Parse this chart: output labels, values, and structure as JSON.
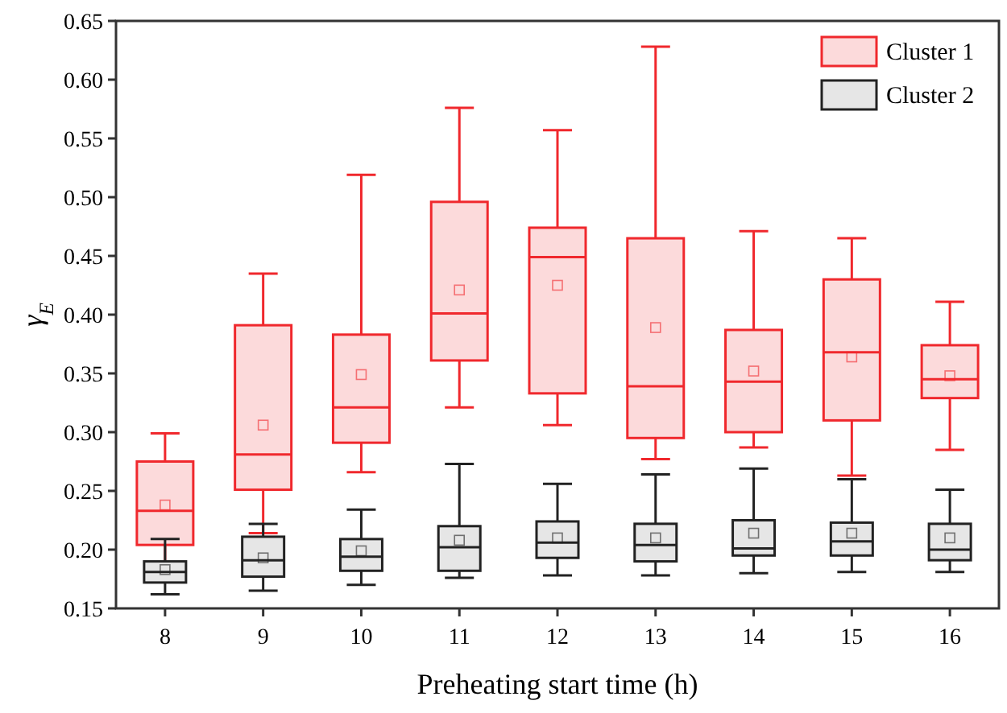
{
  "chart_data": {
    "type": "box",
    "xlabel": "Preheating start time (h)",
    "ylabel": "γ$_{E}$",
    "categories": [
      "8",
      "9",
      "10",
      "11",
      "12",
      "13",
      "14",
      "15",
      "16"
    ],
    "ylim": [
      0.15,
      0.65
    ],
    "yticks": [
      0.15,
      {
        "value": 0.2,
        "label": "0.20"
      },
      0.25,
      {
        "value": 0.3,
        "label": "0.30"
      },
      0.35,
      {
        "value": 0.4,
        "label": "0.40"
      },
      0.45,
      {
        "value": 0.5,
        "label": "0.50"
      },
      0.55,
      {
        "value": 0.6,
        "label": "0.60"
      },
      0.65
    ],
    "legend": "top right",
    "grid": false,
    "series": [
      {
        "name": "Cluster 1",
        "color": "#f0282d",
        "boxes": [
          {
            "low": 0.175,
            "q1": 0.204,
            "median": 0.233,
            "q3": 0.275,
            "high": 0.299,
            "mean": 0.238
          },
          {
            "low": 0.214,
            "q1": 0.251,
            "median": 0.281,
            "q3": 0.391,
            "high": 0.435,
            "mean": 0.306
          },
          {
            "low": 0.266,
            "q1": 0.291,
            "median": 0.321,
            "q3": 0.383,
            "high": 0.519,
            "mean": 0.349
          },
          {
            "low": 0.321,
            "q1": 0.361,
            "median": 0.401,
            "q3": 0.496,
            "high": 0.576,
            "mean": 0.421
          },
          {
            "low": 0.306,
            "q1": 0.333,
            "median": 0.449,
            "q3": 0.474,
            "high": 0.557,
            "mean": 0.425
          },
          {
            "low": 0.277,
            "q1": 0.295,
            "median": 0.339,
            "q3": 0.465,
            "high": 0.628,
            "mean": 0.389
          },
          {
            "low": 0.287,
            "q1": 0.3,
            "median": 0.343,
            "q3": 0.387,
            "high": 0.471,
            "mean": 0.352
          },
          {
            "low": 0.263,
            "q1": 0.31,
            "median": 0.368,
            "q3": 0.43,
            "high": 0.465,
            "mean": 0.364
          },
          {
            "low": 0.285,
            "q1": 0.329,
            "median": 0.345,
            "q3": 0.374,
            "high": 0.411,
            "mean": 0.348
          }
        ]
      },
      {
        "name": "Cluster 2",
        "color": "#222222",
        "boxes": [
          {
            "low": 0.162,
            "q1": 0.172,
            "median": 0.181,
            "q3": 0.19,
            "high": 0.209,
            "mean": 0.183
          },
          {
            "low": 0.165,
            "q1": 0.177,
            "median": 0.191,
            "q3": 0.211,
            "high": 0.222,
            "mean": 0.193
          },
          {
            "low": 0.17,
            "q1": 0.182,
            "median": 0.194,
            "q3": 0.209,
            "high": 0.234,
            "mean": 0.199
          },
          {
            "low": 0.176,
            "q1": 0.182,
            "median": 0.202,
            "q3": 0.22,
            "high": 0.273,
            "mean": 0.208
          },
          {
            "low": 0.178,
            "q1": 0.193,
            "median": 0.206,
            "q3": 0.224,
            "high": 0.256,
            "mean": 0.21
          },
          {
            "low": 0.178,
            "q1": 0.19,
            "median": 0.204,
            "q3": 0.222,
            "high": 0.264,
            "mean": 0.21
          },
          {
            "low": 0.18,
            "q1": 0.195,
            "median": 0.201,
            "q3": 0.225,
            "high": 0.269,
            "mean": 0.214
          },
          {
            "low": 0.181,
            "q1": 0.195,
            "median": 0.207,
            "q3": 0.223,
            "high": 0.26,
            "mean": 0.214
          },
          {
            "low": 0.181,
            "q1": 0.191,
            "median": 0.2,
            "q3": 0.222,
            "high": 0.251,
            "mean": 0.21
          }
        ]
      }
    ]
  }
}
